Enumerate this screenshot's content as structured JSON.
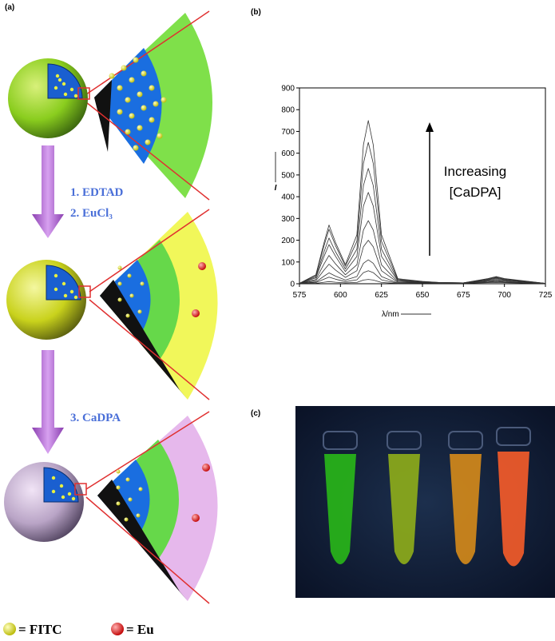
{
  "panels": [
    "(a)",
    "(b)",
    "(c)"
  ],
  "diagram": {
    "steps": [
      "1. EDTAD",
      "2. EuCl₃",
      "3. CaDPA"
    ],
    "legend": [
      "= FITC",
      "= Eu"
    ]
  },
  "chart_data": {
    "type": "line",
    "x_label": "λ/nm",
    "y_label": "I",
    "annotation": [
      "Increasing",
      "[CaDPA]"
    ],
    "x": [
      575,
      585,
      590,
      593,
      597,
      603,
      610,
      614,
      617,
      620,
      625,
      635,
      650,
      660,
      675,
      690,
      695,
      700,
      725
    ],
    "series": [
      {
        "color": "#333333",
        "values": [
          2,
          2,
          7,
          10,
          7,
          4,
          6,
          17,
          20,
          17,
          6,
          1,
          3,
          2,
          2,
          5,
          6,
          5,
          1
        ]
      },
      {
        "color": "#333333",
        "values": [
          2,
          5,
          21,
          30,
          21,
          10,
          18,
          51,
          60,
          51,
          18,
          2,
          4,
          3,
          3,
          7,
          9,
          7,
          2
        ]
      },
      {
        "color": "#333333",
        "values": [
          2,
          8,
          35,
          50,
          35,
          17,
          33,
          94,
          110,
          94,
          33,
          3,
          5,
          3,
          3,
          9,
          12,
          9,
          2
        ]
      },
      {
        "color": "#333333",
        "values": [
          2,
          14,
          63,
          90,
          63,
          29,
          60,
          170,
          200,
          170,
          60,
          6,
          6,
          4,
          3,
          12,
          16,
          12,
          2
        ]
      },
      {
        "color": "#333333",
        "values": [
          2,
          20,
          91,
          130,
          91,
          41,
          87,
          247,
          290,
          247,
          87,
          9,
          7,
          4,
          3,
          15,
          20,
          15,
          2
        ]
      },
      {
        "color": "#333333",
        "values": [
          2,
          27,
          126,
          180,
          126,
          56,
          126,
          357,
          420,
          357,
          126,
          13,
          8,
          5,
          4,
          18,
          24,
          18,
          2
        ]
      },
      {
        "color": "#333333",
        "values": [
          2,
          32,
          147,
          210,
          147,
          68,
          159,
          451,
          530,
          451,
          159,
          16,
          9,
          5,
          4,
          20,
          27,
          20,
          2
        ]
      },
      {
        "color": "#333333",
        "values": [
          2,
          38,
          175,
          250,
          175,
          80,
          195,
          553,
          650,
          553,
          195,
          20,
          10,
          6,
          4,
          22,
          30,
          22,
          2
        ]
      },
      {
        "color": "#333333",
        "values": [
          2,
          41,
          189,
          270,
          189,
          88,
          225,
          638,
          750,
          638,
          225,
          23,
          11,
          6,
          4,
          24,
          33,
          24,
          2
        ]
      }
    ],
    "xlim": [
      575,
      725
    ],
    "xticks": [
      575,
      600,
      625,
      650,
      675,
      700,
      725
    ],
    "ylim": [
      0,
      900
    ],
    "yticks": [
      0,
      100,
      200,
      300,
      400,
      500,
      600,
      700,
      800,
      900
    ]
  }
}
